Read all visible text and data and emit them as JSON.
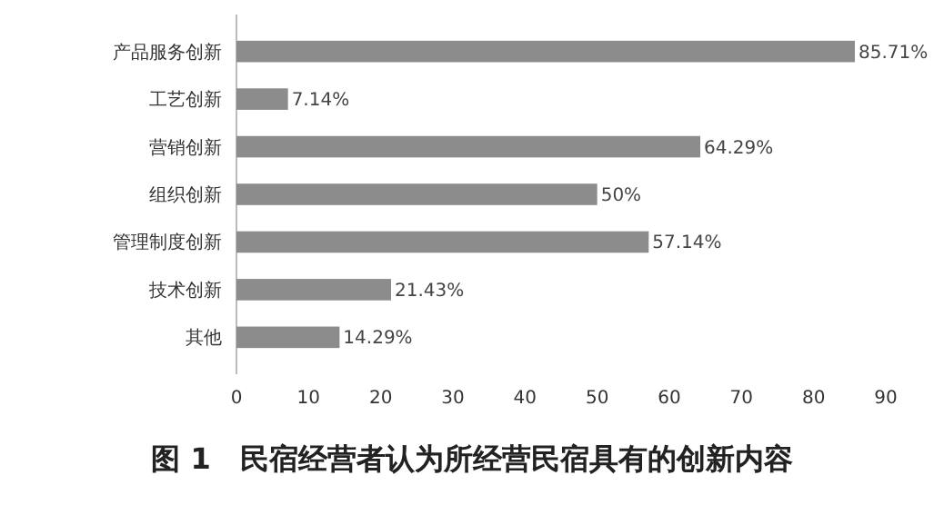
{
  "chart_data": {
    "type": "bar",
    "orientation": "horizontal",
    "title": "图 1　民宿经营者认为所经营民宿具有的创新内容",
    "categories": [
      "产品服务创新",
      "工艺创新",
      "营销创新",
      "组织创新",
      "管理制度创新",
      "技术创新",
      "其他"
    ],
    "values": [
      85.71,
      7.14,
      64.29,
      50,
      57.14,
      21.43,
      14.29
    ],
    "value_labels": [
      "85.71%",
      "7.14%",
      "64.29%",
      "50%",
      "57.14%",
      "21.43%",
      "14.29%"
    ],
    "color": "#8c8c8c",
    "xlim": [
      0,
      90
    ],
    "xticks": [
      0,
      10,
      20,
      30,
      40,
      50,
      60,
      70,
      80,
      90
    ],
    "grid": false
  }
}
